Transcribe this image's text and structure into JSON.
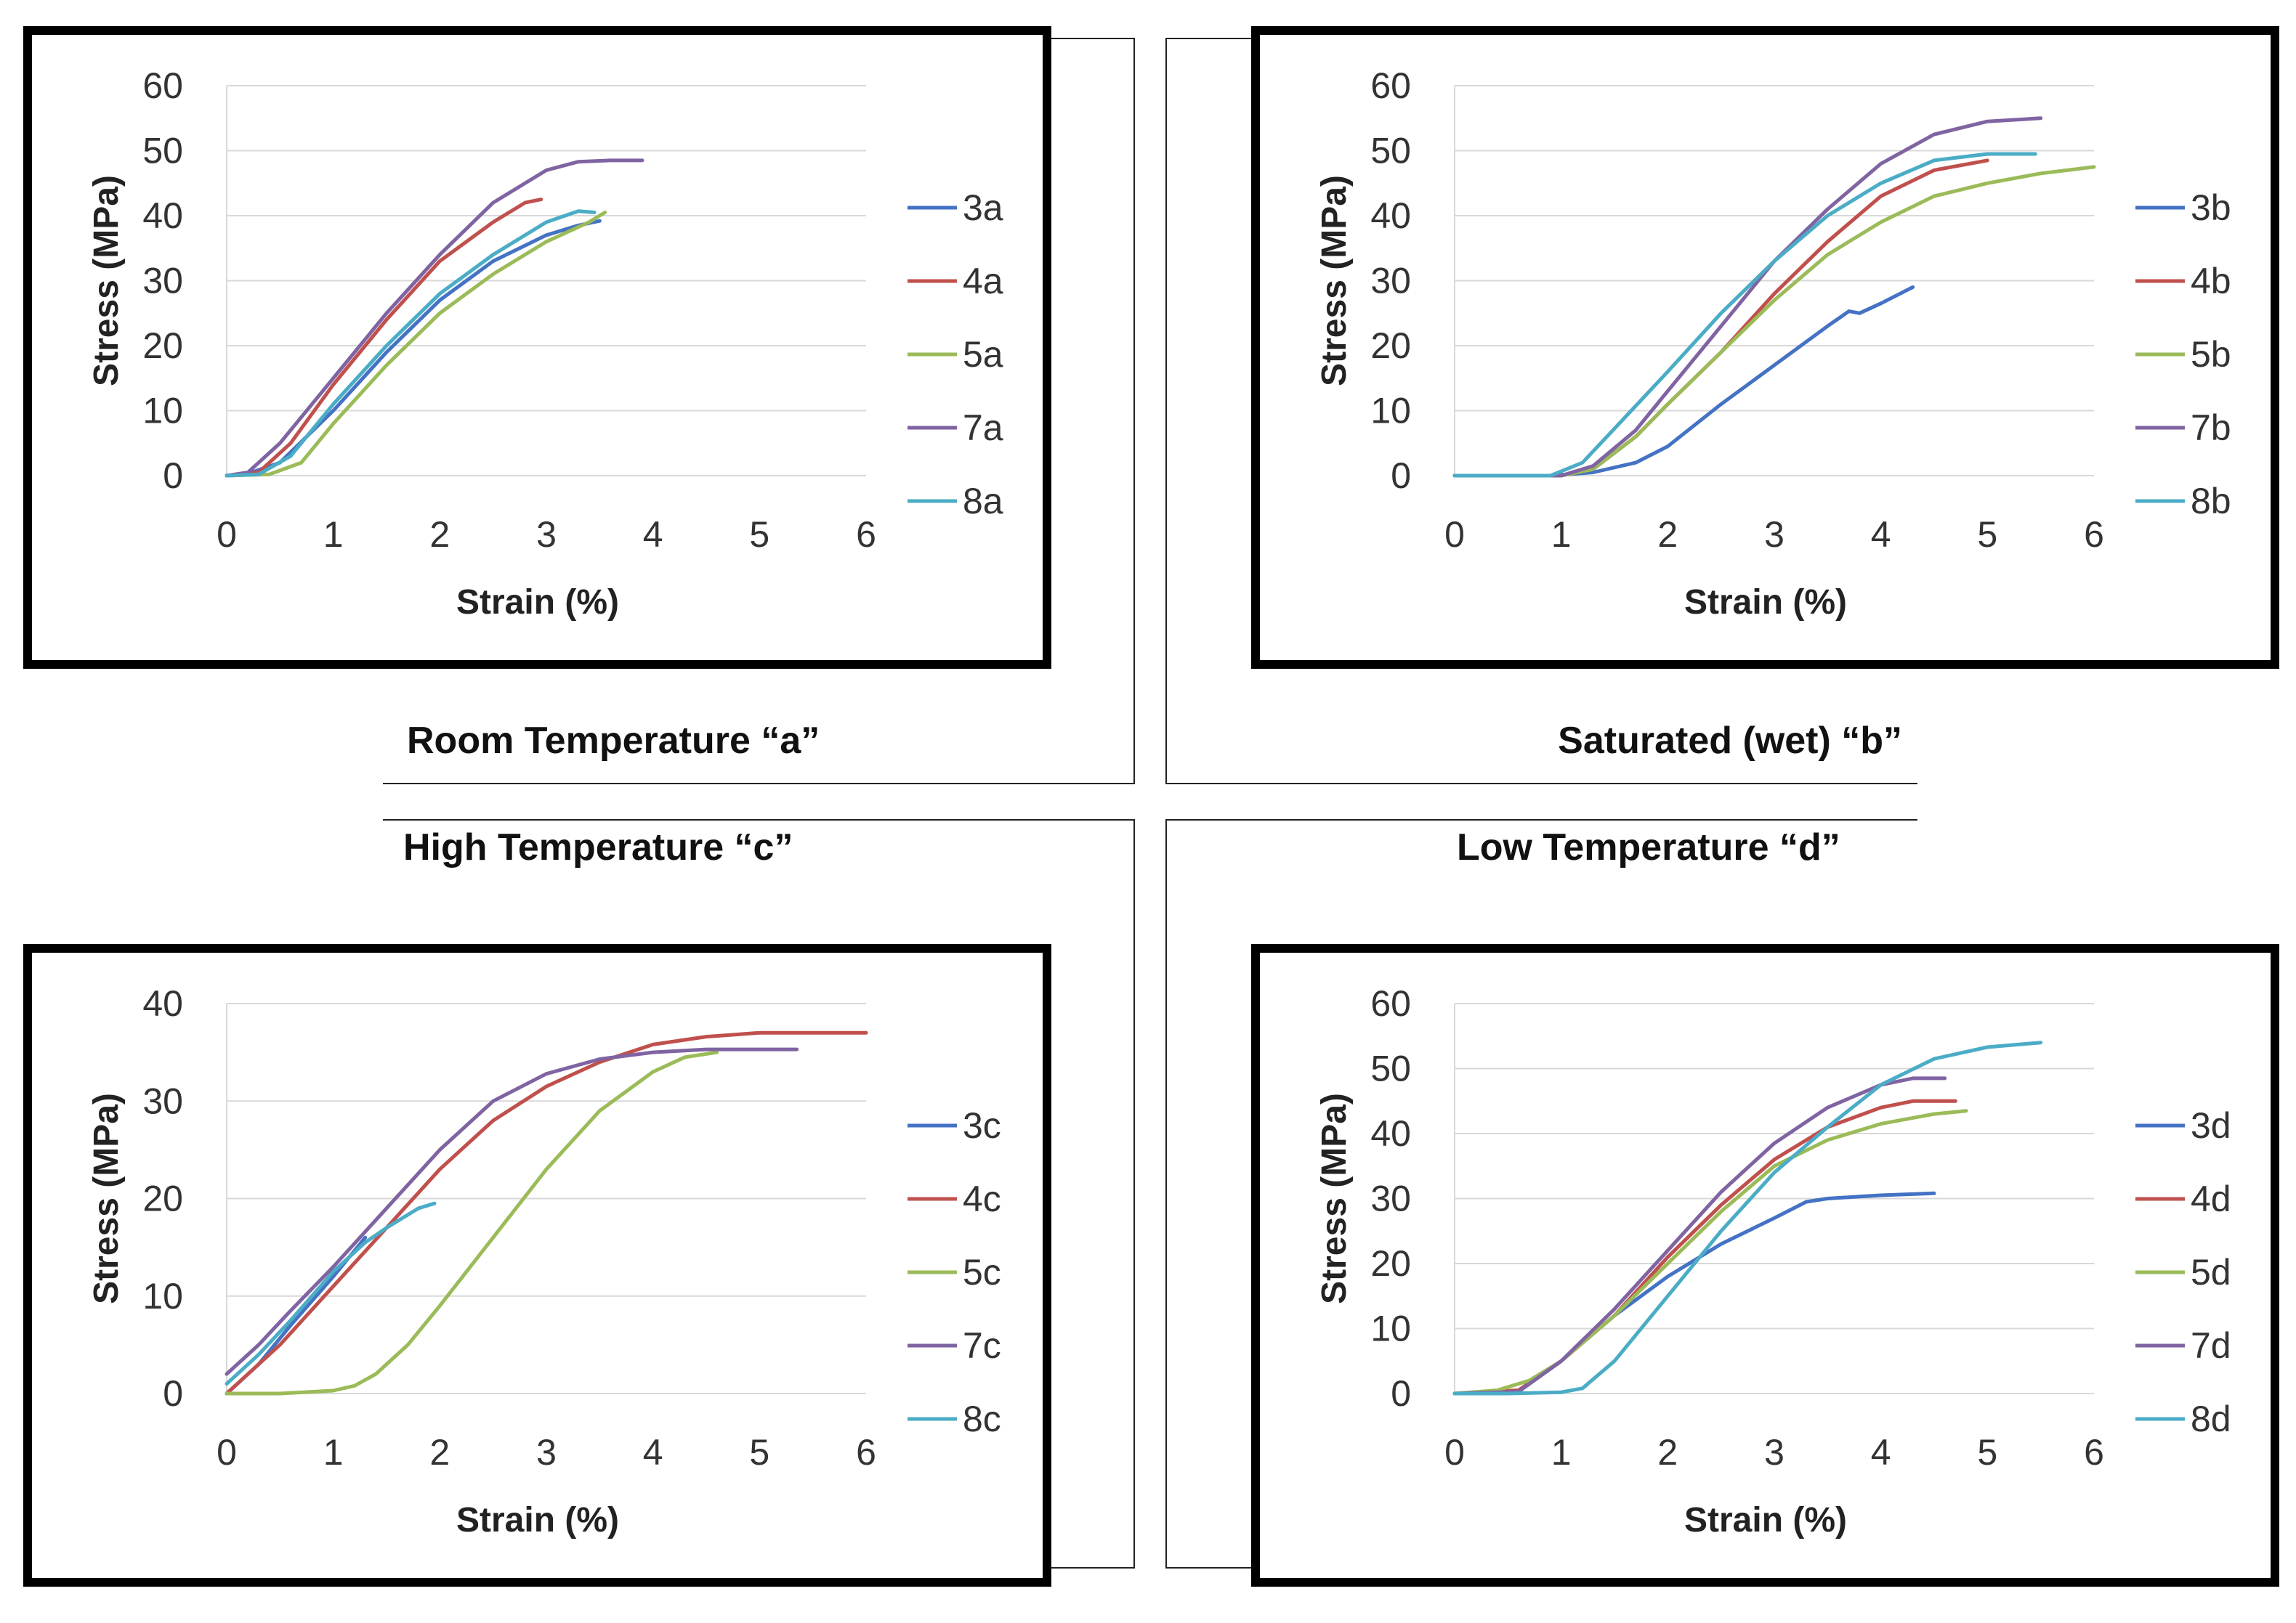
{
  "conditions": {
    "a": "Room Temperature “a”",
    "b": "Saturated (wet) “b”",
    "c": "High Temperature “c”",
    "d": "Low Temperature “d”"
  },
  "colors": {
    "s3": "#4472C4",
    "s4": "#C0504D",
    "s5": "#9BBB59",
    "s7": "#8064A2",
    "s8": "#4BACC6",
    "grid": "#D9D9D9"
  },
  "chart_data": [
    {
      "type": "line",
      "panel": "a",
      "xlabel": "Strain (%)",
      "ylabel": "Stress (MPa)",
      "xlim": [
        0,
        6
      ],
      "ylim": [
        0,
        60
      ],
      "xticks": [
        "0",
        "1",
        "2",
        "3",
        "4",
        "5",
        "6"
      ],
      "yticks": [
        "0",
        "10",
        "20",
        "30",
        "40",
        "50",
        "60"
      ],
      "series": [
        {
          "name": "3a",
          "color_key": "s3",
          "x": [
            0,
            0.2,
            0.5,
            1.0,
            1.5,
            2.0,
            2.5,
            3.0,
            3.3,
            3.5
          ],
          "y": [
            0,
            0.3,
            2,
            10,
            19,
            27,
            33,
            37,
            38.5,
            39.2
          ]
        },
        {
          "name": "4a",
          "color_key": "s4",
          "x": [
            0,
            0.3,
            0.6,
            1.0,
            1.5,
            2.0,
            2.5,
            2.8,
            2.95
          ],
          "y": [
            0,
            0.5,
            5,
            14,
            24,
            33,
            39,
            42,
            42.5
          ]
        },
        {
          "name": "5a",
          "color_key": "s5",
          "x": [
            0,
            0.4,
            0.7,
            1.0,
            1.5,
            2.0,
            2.5,
            3.0,
            3.4,
            3.55
          ],
          "y": [
            0,
            0.2,
            2,
            8,
            17,
            25,
            31,
            36,
            39,
            40.5
          ]
        },
        {
          "name": "7a",
          "color_key": "s7",
          "x": [
            0,
            0.2,
            0.5,
            1.0,
            1.5,
            2.0,
            2.5,
            3.0,
            3.3,
            3.6,
            3.9
          ],
          "y": [
            0,
            0.5,
            5,
            15,
            25,
            34,
            42,
            47,
            48.3,
            48.5,
            48.5
          ]
        },
        {
          "name": "8a",
          "color_key": "s8",
          "x": [
            0,
            0.3,
            0.6,
            1.0,
            1.5,
            2.0,
            2.5,
            3.0,
            3.3,
            3.45
          ],
          "y": [
            0,
            0.2,
            3,
            11,
            20,
            28,
            34,
            39,
            40.7,
            40.5
          ]
        }
      ]
    },
    {
      "type": "line",
      "panel": "b",
      "xlabel": "Strain (%)",
      "ylabel": "Stress (MPa)",
      "xlim": [
        0,
        6
      ],
      "ylim": [
        0,
        60
      ],
      "xticks": [
        "0",
        "1",
        "2",
        "3",
        "4",
        "5",
        "6"
      ],
      "yticks": [
        "0",
        "10",
        "20",
        "30",
        "40",
        "50",
        "60"
      ],
      "series": [
        {
          "name": "3b",
          "color_key": "s3",
          "x": [
            0,
            0.9,
            1.3,
            1.7,
            2.0,
            2.5,
            3.0,
            3.5,
            3.7,
            3.8,
            4.0,
            4.3
          ],
          "y": [
            0,
            0,
            0.5,
            2,
            4.5,
            11,
            17,
            23,
            25.3,
            25,
            26.5,
            29
          ]
        },
        {
          "name": "4b",
          "color_key": "s4",
          "x": [
            0,
            1.0,
            1.3,
            1.7,
            2.0,
            2.5,
            3.0,
            3.5,
            4.0,
            4.5,
            5.0
          ],
          "y": [
            0,
            0,
            1,
            6,
            11,
            19,
            28,
            36,
            43,
            47,
            48.5
          ]
        },
        {
          "name": "5b",
          "color_key": "s5",
          "x": [
            0,
            1.0,
            1.3,
            1.7,
            2.0,
            2.5,
            3.0,
            3.5,
            4.0,
            4.5,
            5.0,
            5.5,
            6.0
          ],
          "y": [
            0,
            0,
            1,
            6,
            11,
            19,
            27,
            34,
            39,
            43,
            45,
            46.5,
            47.5
          ]
        },
        {
          "name": "7b",
          "color_key": "s7",
          "x": [
            0,
            1.0,
            1.3,
            1.7,
            2.0,
            2.5,
            3.0,
            3.5,
            4.0,
            4.5,
            5.0,
            5.5
          ],
          "y": [
            0,
            0,
            1.5,
            7,
            13,
            23,
            33,
            41,
            48,
            52.5,
            54.5,
            55
          ]
        },
        {
          "name": "8b",
          "color_key": "s8",
          "x": [
            0,
            0.9,
            1.2,
            1.6,
            2.0,
            2.5,
            3.0,
            3.5,
            4.0,
            4.5,
            5.0,
            5.45
          ],
          "y": [
            0,
            0,
            2,
            9,
            16,
            25,
            33,
            40,
            45,
            48.5,
            49.5,
            49.5
          ]
        }
      ]
    },
    {
      "type": "line",
      "panel": "c",
      "xlabel": "Strain (%)",
      "ylabel": "Stress (MPa)",
      "xlim": [
        0,
        6
      ],
      "ylim": [
        0,
        40
      ],
      "xticks": [
        "0",
        "1",
        "2",
        "3",
        "4",
        "5",
        "6"
      ],
      "yticks": [
        "0",
        "10",
        "20",
        "30",
        "40"
      ],
      "series": [
        {
          "name": "3c",
          "color_key": "s3",
          "x": [
            0,
            0.3,
            0.6,
            1.0,
            1.3
          ],
          "y": [
            0,
            3,
            7,
            12,
            16
          ]
        },
        {
          "name": "4c",
          "color_key": "s4",
          "x": [
            0,
            0.5,
            1.0,
            1.5,
            2.0,
            2.5,
            3.0,
            3.5,
            4.0,
            4.5,
            5.0,
            5.5,
            6.0
          ],
          "y": [
            0,
            5,
            11,
            17,
            23,
            28,
            31.5,
            34,
            35.8,
            36.6,
            37,
            37,
            37
          ]
        },
        {
          "name": "5c",
          "color_key": "s5",
          "x": [
            0,
            0.5,
            1.0,
            1.2,
            1.4,
            1.7,
            2.0,
            2.5,
            3.0,
            3.5,
            4.0,
            4.3,
            4.6
          ],
          "y": [
            0,
            0,
            0.3,
            0.8,
            2,
            5,
            9,
            16,
            23,
            29,
            33,
            34.5,
            35
          ]
        },
        {
          "name": "7c",
          "color_key": "s7",
          "x": [
            0,
            0.3,
            0.6,
            1.0,
            1.5,
            2.0,
            2.5,
            3.0,
            3.5,
            4.0,
            4.5,
            5.0,
            5.35
          ],
          "y": [
            2,
            5,
            8.5,
            13,
            19,
            25,
            30,
            32.8,
            34.3,
            35,
            35.3,
            35.3,
            35.3
          ]
        },
        {
          "name": "8c",
          "color_key": "s8",
          "x": [
            0,
            0.3,
            0.6,
            1.0,
            1.3,
            1.5,
            1.8,
            1.95
          ],
          "y": [
            1,
            4,
            7.5,
            12.5,
            15.5,
            17,
            19,
            19.5
          ]
        }
      ]
    },
    {
      "type": "line",
      "panel": "d",
      "xlabel": "Strain (%)",
      "ylabel": "Stress (MPa)",
      "xlim": [
        0,
        6
      ],
      "ylim": [
        0,
        60
      ],
      "xticks": [
        "0",
        "1",
        "2",
        "3",
        "4",
        "5",
        "6"
      ],
      "yticks": [
        "0",
        "10",
        "20",
        "30",
        "40",
        "50",
        "60"
      ],
      "series": [
        {
          "name": "3d",
          "color_key": "s3",
          "x": [
            0,
            0.6,
            1.0,
            1.5,
            2.0,
            2.5,
            3.0,
            3.3,
            3.5,
            3.8,
            4.0,
            4.5
          ],
          "y": [
            0,
            0.3,
            5,
            12,
            18,
            23,
            27,
            29.5,
            30,
            30.3,
            30.5,
            30.8
          ]
        },
        {
          "name": "4d",
          "color_key": "s4",
          "x": [
            0,
            0.6,
            1.0,
            1.5,
            2.0,
            2.5,
            3.0,
            3.5,
            4.0,
            4.3,
            4.7
          ],
          "y": [
            0,
            0.5,
            5,
            12,
            21,
            29,
            36,
            41,
            44,
            45,
            45
          ]
        },
        {
          "name": "5d",
          "color_key": "s5",
          "x": [
            0,
            0.4,
            0.7,
            1.0,
            1.5,
            2.0,
            2.5,
            3.0,
            3.5,
            4.0,
            4.5,
            4.8
          ],
          "y": [
            0,
            0.5,
            2,
            5,
            12,
            20,
            28,
            35,
            39,
            41.5,
            43,
            43.5
          ]
        },
        {
          "name": "7d",
          "color_key": "s7",
          "x": [
            0,
            0.6,
            1.0,
            1.5,
            2.0,
            2.5,
            3.0,
            3.5,
            4.0,
            4.3,
            4.6
          ],
          "y": [
            0,
            0.3,
            5,
            13,
            22,
            31,
            38.5,
            44,
            47.5,
            48.5,
            48.5
          ]
        },
        {
          "name": "8d",
          "color_key": "s8",
          "x": [
            0,
            0.5,
            1.0,
            1.2,
            1.5,
            2.0,
            2.5,
            3.0,
            3.5,
            4.0,
            4.5,
            5.0,
            5.5
          ],
          "y": [
            0,
            0,
            0.2,
            0.8,
            5,
            15,
            25,
            34,
            41,
            47.5,
            51.5,
            53.3,
            54
          ]
        }
      ]
    }
  ]
}
